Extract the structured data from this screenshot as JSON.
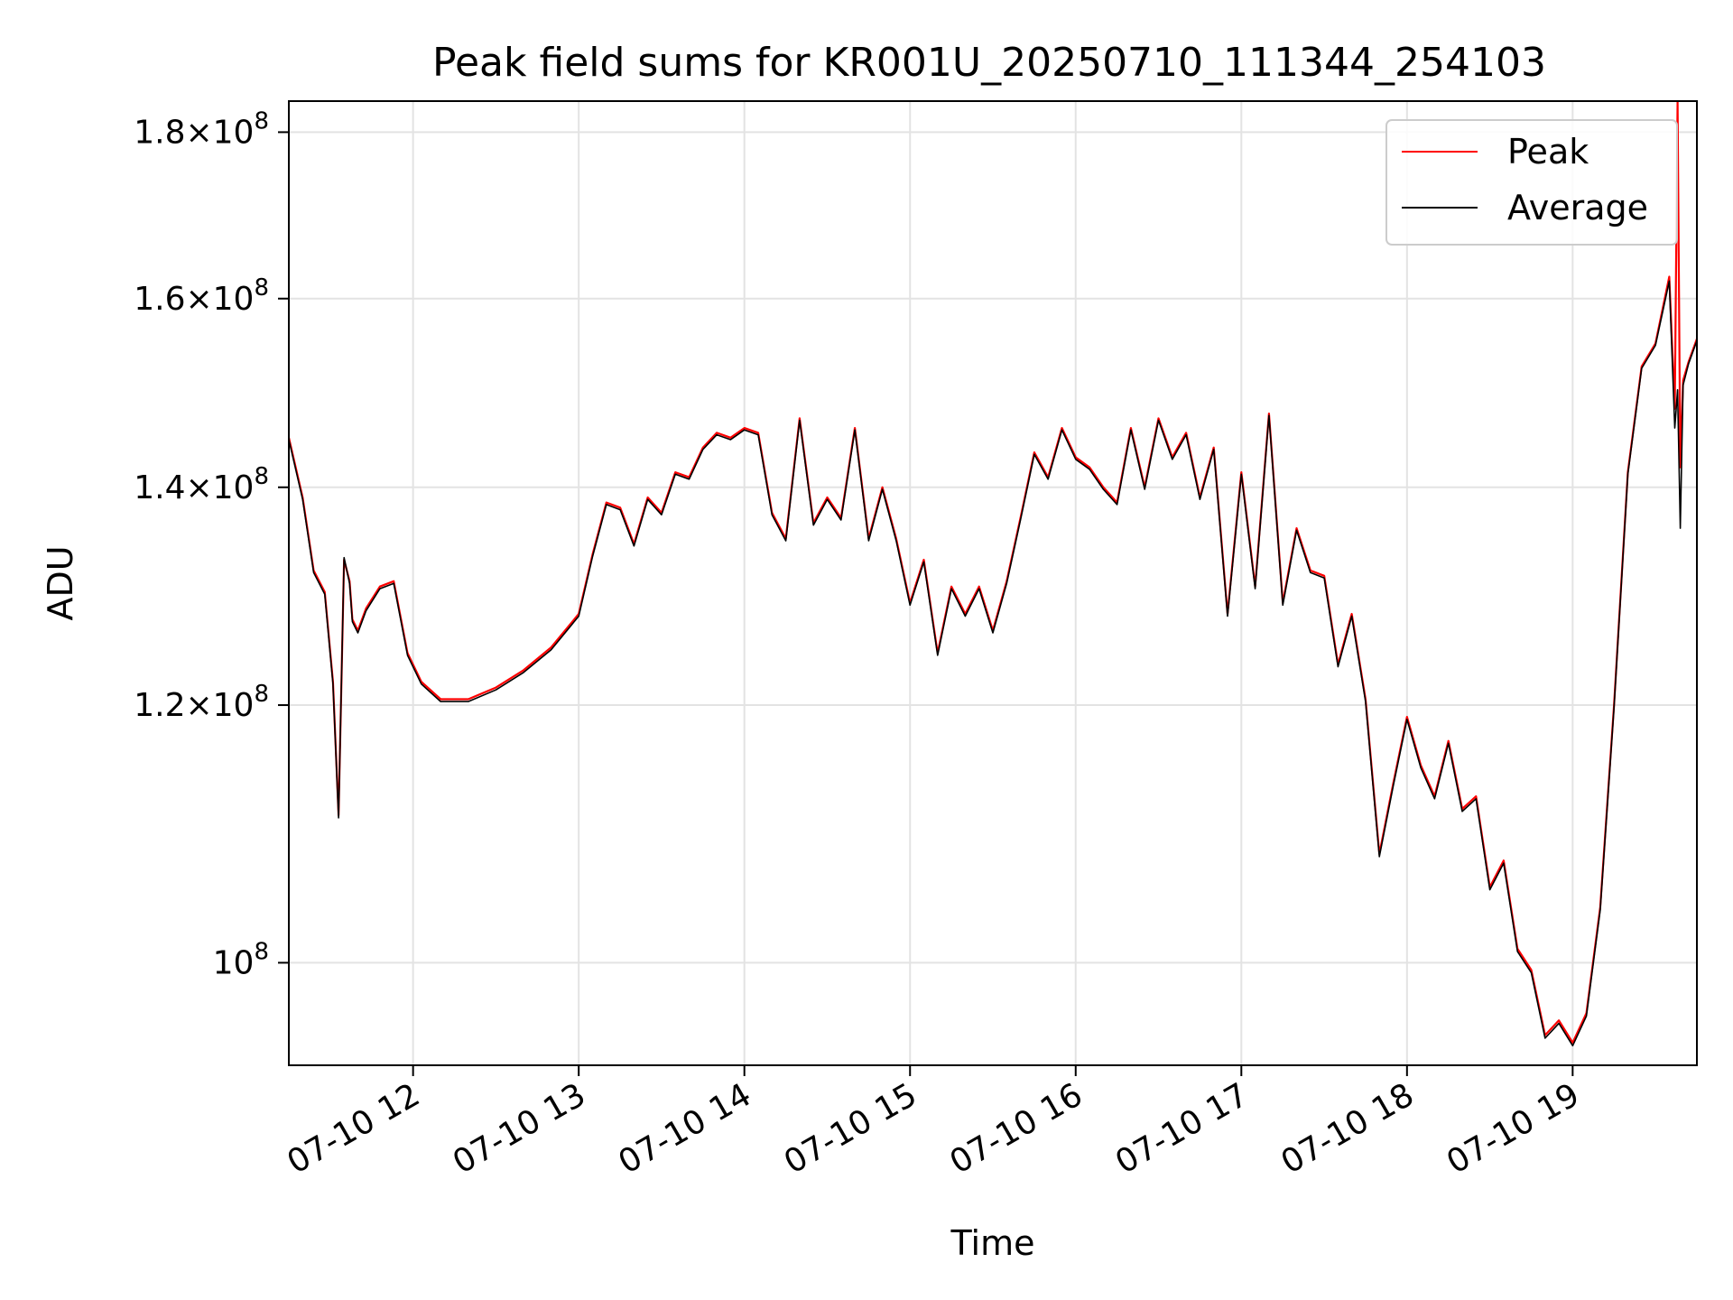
{
  "chart_data": {
    "type": "line",
    "title": "Peak field sums for KR001U_20250710_111344_254103",
    "xlabel": "Time",
    "ylabel": "ADU",
    "y_scale": "log",
    "x_range": [
      "2025-07-10 11:15",
      "2025-07-10 19:45"
    ],
    "ylim": [
      93000000,
      184000000
    ],
    "grid": true,
    "legend_position": "top-right",
    "x_ticks": [
      {
        "value": "2025-07-10 12:00",
        "label": "07-10 12"
      },
      {
        "value": "2025-07-10 13:00",
        "label": "07-10 13"
      },
      {
        "value": "2025-07-10 14:00",
        "label": "07-10 14"
      },
      {
        "value": "2025-07-10 15:00",
        "label": "07-10 15"
      },
      {
        "value": "2025-07-10 16:00",
        "label": "07-10 16"
      },
      {
        "value": "2025-07-10 17:00",
        "label": "07-10 17"
      },
      {
        "value": "2025-07-10 18:00",
        "label": "07-10 18"
      },
      {
        "value": "2025-07-10 19:00",
        "label": "07-10 19"
      }
    ],
    "y_ticks": [
      {
        "value": 100000000,
        "mantissa": "",
        "exponent": "8"
      },
      {
        "value": 120000000,
        "mantissa": "1.2",
        "exponent": "8"
      },
      {
        "value": 140000000,
        "mantissa": "1.4",
        "exponent": "8"
      },
      {
        "value": 160000000,
        "mantissa": "1.6",
        "exponent": "8"
      },
      {
        "value": 180000000,
        "mantissa": "1.8",
        "exponent": "8"
      }
    ],
    "series": [
      {
        "name": "Peak",
        "color": "#ff0000",
        "x": [
          "2025-07-10 11:15",
          "2025-07-10 11:20",
          "2025-07-10 11:24",
          "2025-07-10 11:28",
          "2025-07-10 11:31",
          "2025-07-10 11:33",
          "2025-07-10 11:35",
          "2025-07-10 11:37",
          "2025-07-10 11:38",
          "2025-07-10 11:40",
          "2025-07-10 11:43",
          "2025-07-10 11:48",
          "2025-07-10 11:53",
          "2025-07-10 11:58",
          "2025-07-10 12:03",
          "2025-07-10 12:10",
          "2025-07-10 12:20",
          "2025-07-10 12:30",
          "2025-07-10 12:40",
          "2025-07-10 12:50",
          "2025-07-10 13:00",
          "2025-07-10 13:05",
          "2025-07-10 13:10",
          "2025-07-10 13:15",
          "2025-07-10 13:20",
          "2025-07-10 13:25",
          "2025-07-10 13:30",
          "2025-07-10 13:35",
          "2025-07-10 13:40",
          "2025-07-10 13:45",
          "2025-07-10 13:50",
          "2025-07-10 13:55",
          "2025-07-10 14:00",
          "2025-07-10 14:05",
          "2025-07-10 14:10",
          "2025-07-10 14:15",
          "2025-07-10 14:20",
          "2025-07-10 14:25",
          "2025-07-10 14:30",
          "2025-07-10 14:35",
          "2025-07-10 14:40",
          "2025-07-10 14:45",
          "2025-07-10 14:50",
          "2025-07-10 14:55",
          "2025-07-10 15:00",
          "2025-07-10 15:05",
          "2025-07-10 15:10",
          "2025-07-10 15:15",
          "2025-07-10 15:20",
          "2025-07-10 15:25",
          "2025-07-10 15:30",
          "2025-07-10 15:35",
          "2025-07-10 15:40",
          "2025-07-10 15:45",
          "2025-07-10 15:50",
          "2025-07-10 15:55",
          "2025-07-10 16:00",
          "2025-07-10 16:05",
          "2025-07-10 16:10",
          "2025-07-10 16:15",
          "2025-07-10 16:20",
          "2025-07-10 16:25",
          "2025-07-10 16:30",
          "2025-07-10 16:35",
          "2025-07-10 16:40",
          "2025-07-10 16:45",
          "2025-07-10 16:50",
          "2025-07-10 16:55",
          "2025-07-10 17:00",
          "2025-07-10 17:05",
          "2025-07-10 17:10",
          "2025-07-10 17:15",
          "2025-07-10 17:20",
          "2025-07-10 17:25",
          "2025-07-10 17:30",
          "2025-07-10 17:35",
          "2025-07-10 17:40",
          "2025-07-10 17:45",
          "2025-07-10 17:50",
          "2025-07-10 17:55",
          "2025-07-10 18:00",
          "2025-07-10 18:05",
          "2025-07-10 18:10",
          "2025-07-10 18:15",
          "2025-07-10 18:20",
          "2025-07-10 18:25",
          "2025-07-10 18:30",
          "2025-07-10 18:35",
          "2025-07-10 18:40",
          "2025-07-10 18:45",
          "2025-07-10 18:50",
          "2025-07-10 18:55",
          "2025-07-10 19:00",
          "2025-07-10 19:05",
          "2025-07-10 19:10",
          "2025-07-10 19:15",
          "2025-07-10 19:20",
          "2025-07-10 19:25",
          "2025-07-10 19:30",
          "2025-07-10 19:35",
          "2025-07-10 19:37",
          "2025-07-10 19:38",
          "2025-07-10 19:39",
          "2025-07-10 19:40",
          "2025-07-10 19:42",
          "2025-07-10 19:45"
        ],
        "values": [
          145000000,
          139000000,
          132000000,
          130000000,
          122000000,
          111000000,
          133000000,
          131000000,
          127500000,
          126500000,
          128500000,
          130500000,
          131000000,
          124500000,
          122000000,
          120500000,
          120500000,
          121500000,
          123000000,
          125000000,
          128000000,
          133500000,
          138500000,
          138000000,
          134500000,
          139000000,
          137500000,
          141500000,
          141000000,
          144000000,
          145500000,
          145000000,
          146000000,
          145500000,
          137500000,
          135000000,
          147000000,
          136500000,
          139000000,
          137000000,
          146000000,
          135000000,
          140000000,
          135000000,
          129000000,
          133000000,
          124500000,
          130500000,
          128000000,
          130500000,
          126500000,
          131000000,
          137000000,
          143500000,
          141000000,
          146000000,
          143000000,
          142000000,
          140000000,
          138500000,
          146000000,
          140000000,
          147000000,
          143000000,
          145500000,
          139000000,
          144000000,
          128000000,
          141500000,
          130500000,
          147500000,
          129000000,
          136000000,
          132000000,
          131500000,
          123500000,
          128000000,
          120500000,
          108000000,
          113500000,
          119000000,
          115000000,
          112500000,
          117000000,
          111500000,
          112500000,
          105500000,
          107500000,
          101000000,
          99500000,
          95000000,
          96000000,
          94500000,
          96500000,
          104000000,
          120000000,
          141500000,
          152500000,
          155000000,
          162500000,
          148000000,
          184000000,
          142000000,
          151000000,
          153000000,
          155500000
        ]
      },
      {
        "name": "Average",
        "color": "#000000",
        "x": [
          "2025-07-10 11:15",
          "2025-07-10 11:20",
          "2025-07-10 11:24",
          "2025-07-10 11:28",
          "2025-07-10 11:31",
          "2025-07-10 11:33",
          "2025-07-10 11:35",
          "2025-07-10 11:37",
          "2025-07-10 11:38",
          "2025-07-10 11:40",
          "2025-07-10 11:43",
          "2025-07-10 11:48",
          "2025-07-10 11:53",
          "2025-07-10 11:58",
          "2025-07-10 12:03",
          "2025-07-10 12:10",
          "2025-07-10 12:20",
          "2025-07-10 12:30",
          "2025-07-10 12:40",
          "2025-07-10 12:50",
          "2025-07-10 13:00",
          "2025-07-10 13:05",
          "2025-07-10 13:10",
          "2025-07-10 13:15",
          "2025-07-10 13:20",
          "2025-07-10 13:25",
          "2025-07-10 13:30",
          "2025-07-10 13:35",
          "2025-07-10 13:40",
          "2025-07-10 13:45",
          "2025-07-10 13:50",
          "2025-07-10 13:55",
          "2025-07-10 14:00",
          "2025-07-10 14:05",
          "2025-07-10 14:10",
          "2025-07-10 14:15",
          "2025-07-10 14:20",
          "2025-07-10 14:25",
          "2025-07-10 14:30",
          "2025-07-10 14:35",
          "2025-07-10 14:40",
          "2025-07-10 14:45",
          "2025-07-10 14:50",
          "2025-07-10 14:55",
          "2025-07-10 15:00",
          "2025-07-10 15:05",
          "2025-07-10 15:10",
          "2025-07-10 15:15",
          "2025-07-10 15:20",
          "2025-07-10 15:25",
          "2025-07-10 15:30",
          "2025-07-10 15:35",
          "2025-07-10 15:40",
          "2025-07-10 15:45",
          "2025-07-10 15:50",
          "2025-07-10 15:55",
          "2025-07-10 16:00",
          "2025-07-10 16:05",
          "2025-07-10 16:10",
          "2025-07-10 16:15",
          "2025-07-10 16:20",
          "2025-07-10 16:25",
          "2025-07-10 16:30",
          "2025-07-10 16:35",
          "2025-07-10 16:40",
          "2025-07-10 16:45",
          "2025-07-10 16:50",
          "2025-07-10 16:55",
          "2025-07-10 17:00",
          "2025-07-10 17:05",
          "2025-07-10 17:10",
          "2025-07-10 17:15",
          "2025-07-10 17:20",
          "2025-07-10 17:25",
          "2025-07-10 17:30",
          "2025-07-10 17:35",
          "2025-07-10 17:40",
          "2025-07-10 17:45",
          "2025-07-10 17:50",
          "2025-07-10 17:55",
          "2025-07-10 18:00",
          "2025-07-10 18:05",
          "2025-07-10 18:10",
          "2025-07-10 18:15",
          "2025-07-10 18:20",
          "2025-07-10 18:25",
          "2025-07-10 18:30",
          "2025-07-10 18:35",
          "2025-07-10 18:40",
          "2025-07-10 18:45",
          "2025-07-10 18:50",
          "2025-07-10 18:55",
          "2025-07-10 19:00",
          "2025-07-10 19:05",
          "2025-07-10 19:10",
          "2025-07-10 19:15",
          "2025-07-10 19:20",
          "2025-07-10 19:25",
          "2025-07-10 19:30",
          "2025-07-10 19:35",
          "2025-07-10 19:37",
          "2025-07-10 19:38",
          "2025-07-10 19:39",
          "2025-07-10 19:40",
          "2025-07-10 19:42",
          "2025-07-10 19:45"
        ],
        "values": [
          144800000,
          138800000,
          131800000,
          129800000,
          121800000,
          110800000,
          133200000,
          130800000,
          127300000,
          126300000,
          128300000,
          130300000,
          130800000,
          124300000,
          121800000,
          120300000,
          120300000,
          121300000,
          122800000,
          124800000,
          127800000,
          133300000,
          138300000,
          137800000,
          134300000,
          138800000,
          137300000,
          141300000,
          140800000,
          143800000,
          145300000,
          144800000,
          145800000,
          145300000,
          137300000,
          134800000,
          146800000,
          136300000,
          138800000,
          136800000,
          145800000,
          134800000,
          139800000,
          134800000,
          128800000,
          132800000,
          124300000,
          130300000,
          127800000,
          130300000,
          126300000,
          130800000,
          136800000,
          143300000,
          140800000,
          145800000,
          142800000,
          141800000,
          139800000,
          138300000,
          145800000,
          139800000,
          146800000,
          142800000,
          145300000,
          138800000,
          143800000,
          127800000,
          141300000,
          130300000,
          147300000,
          128800000,
          135800000,
          131800000,
          131300000,
          123300000,
          127800000,
          120300000,
          107800000,
          113300000,
          118800000,
          114800000,
          112300000,
          116800000,
          111300000,
          112300000,
          105300000,
          107300000,
          100800000,
          99300000,
          94800000,
          95800000,
          94300000,
          96300000,
          103800000,
          119800000,
          141300000,
          152300000,
          154800000,
          162000000,
          146000000,
          150000000,
          136000000,
          150500000,
          152800000,
          155300000
        ]
      }
    ]
  }
}
